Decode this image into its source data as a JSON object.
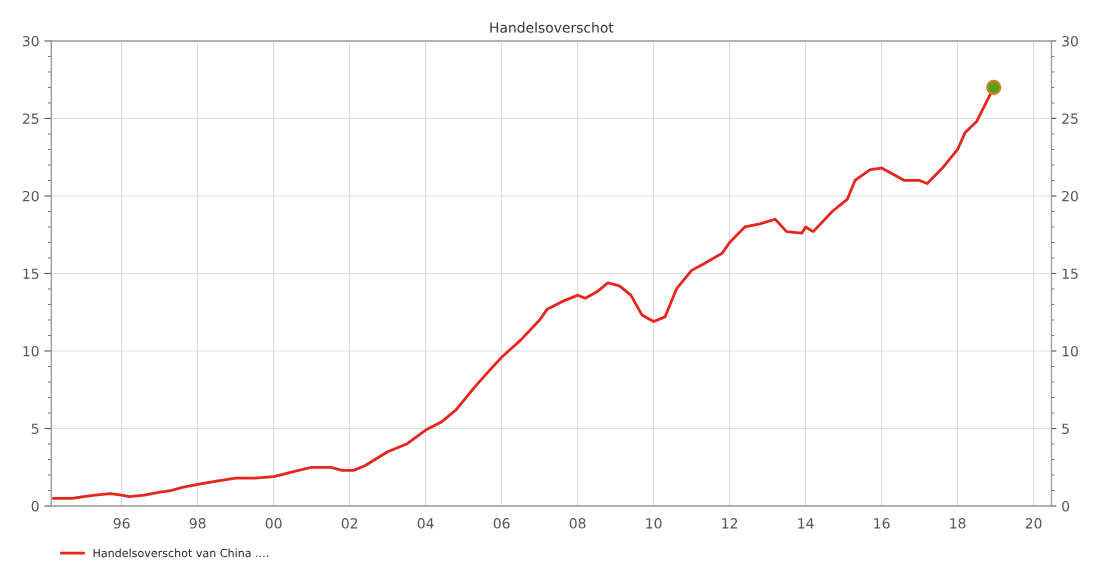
{
  "chart_data": {
    "type": "line",
    "title": "Handelsoverschot",
    "xlim": [
      1994.15,
      2020.47
    ],
    "xticks": [
      {
        "value": 1996,
        "label": "96"
      },
      {
        "value": 1998,
        "label": "98"
      },
      {
        "value": 2000,
        "label": "00"
      },
      {
        "value": 2002,
        "label": "02"
      },
      {
        "value": 2004,
        "label": "04"
      },
      {
        "value": 2006,
        "label": "06"
      },
      {
        "value": 2008,
        "label": "08"
      },
      {
        "value": 2010,
        "label": "10"
      },
      {
        "value": 2012,
        "label": "12"
      },
      {
        "value": 2014,
        "label": "14"
      },
      {
        "value": 2016,
        "label": "16"
      },
      {
        "value": 2018,
        "label": "18"
      },
      {
        "value": 2020,
        "label": "20"
      }
    ],
    "ylim": [
      0,
      30
    ],
    "yticks": [
      0,
      5,
      10,
      15,
      20,
      25,
      30
    ],
    "y2lim": [
      0,
      30
    ],
    "y2ticks": [
      0,
      5,
      10,
      15,
      20,
      25,
      30
    ],
    "grid": true,
    "legend": "bottom left",
    "series": [
      {
        "name": "Handelsoverschot van China ....",
        "color": "#e8241e",
        "x": [
          1994.2,
          1994.7,
          1995.0,
          1995.3,
          1995.7,
          1996.0,
          1996.2,
          1996.6,
          1997.0,
          1997.3,
          1997.6,
          1998.0,
          1998.5,
          1999.0,
          1999.5,
          2000.0,
          2000.5,
          2001.0,
          2001.5,
          2001.8,
          2002.1,
          2002.4,
          2003.0,
          2003.5,
          2004.0,
          2004.4,
          2004.8,
          2005.3,
          2005.7,
          2006.0,
          2006.5,
          2007.0,
          2007.2,
          2007.6,
          2008.0,
          2008.2,
          2008.5,
          2008.8,
          2009.1,
          2009.4,
          2009.7,
          2010.0,
          2010.3,
          2010.6,
          2011.0,
          2011.3,
          2011.8,
          2012.0,
          2012.4,
          2012.8,
          2013.2,
          2013.5,
          2013.9,
          2014.0,
          2014.2,
          2014.7,
          2015.1,
          2015.3,
          2015.7,
          2016.0,
          2016.3,
          2016.6,
          2017.0,
          2017.2,
          2017.6,
          2018.0,
          2018.2,
          2018.5,
          2018.95
        ],
        "values": [
          0.5,
          0.5,
          0.6,
          0.7,
          0.8,
          0.7,
          0.6,
          0.7,
          0.9,
          1.0,
          1.2,
          1.4,
          1.6,
          1.8,
          1.8,
          1.9,
          2.2,
          2.5,
          2.5,
          2.3,
          2.3,
          2.6,
          3.5,
          4.0,
          4.9,
          5.4,
          6.2,
          7.7,
          8.8,
          9.6,
          10.7,
          12.0,
          12.7,
          13.2,
          13.6,
          13.4,
          13.8,
          14.4,
          14.2,
          13.6,
          12.3,
          11.9,
          12.2,
          14.0,
          15.2,
          15.6,
          16.3,
          17.0,
          18.0,
          18.2,
          18.5,
          17.7,
          17.6,
          18.0,
          17.7,
          19.0,
          19.8,
          21.0,
          21.7,
          21.8,
          21.4,
          21.0,
          21.0,
          20.8,
          21.8,
          23.0,
          24.1,
          24.8,
          27.0
        ]
      },
      {
        "color": "#5a9e1e",
        "type": "scatter",
        "marker": "circle",
        "x": [
          2018.95
        ],
        "values": [
          27.0
        ]
      }
    ]
  }
}
